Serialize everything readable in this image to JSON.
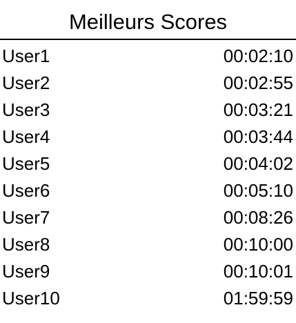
{
  "header": {
    "title": "Meilleurs Scores"
  },
  "scores": [
    {
      "user": "User1",
      "time": "00:02:10"
    },
    {
      "user": "User2",
      "time": "00:02:55"
    },
    {
      "user": "User3",
      "time": "00:03:21"
    },
    {
      "user": "User4",
      "time": "00:03:44"
    },
    {
      "user": "User5",
      "time": "00:04:02"
    },
    {
      "user": "User6",
      "time": "00:05:10"
    },
    {
      "user": "User7",
      "time": "00:08:26"
    },
    {
      "user": "User8",
      "time": "00:10:00"
    },
    {
      "user": "User9",
      "time": "00:10:01"
    },
    {
      "user": "User10",
      "time": "01:59:59"
    }
  ],
  "colors": {
    "background": "#ffffff",
    "text": "#000000",
    "divider": "#000000"
  }
}
